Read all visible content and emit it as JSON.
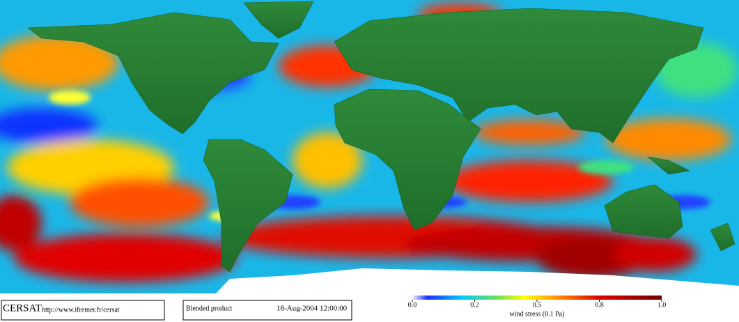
{
  "header": {
    "logo": "CERSAT",
    "url": "http://www.ifremer.fr/cersat"
  },
  "product": "Blended product",
  "timestamp": "18-Aug-2004 12:00:00",
  "colorbar": {
    "label": "wind stress (0.1 Pa)",
    "ticks": [
      {
        "value": 0,
        "label": "0.0"
      },
      0.2,
      0.5,
      0.8,
      {
        "value": 1,
        "label": "1.0"
      }
    ]
  }
}
